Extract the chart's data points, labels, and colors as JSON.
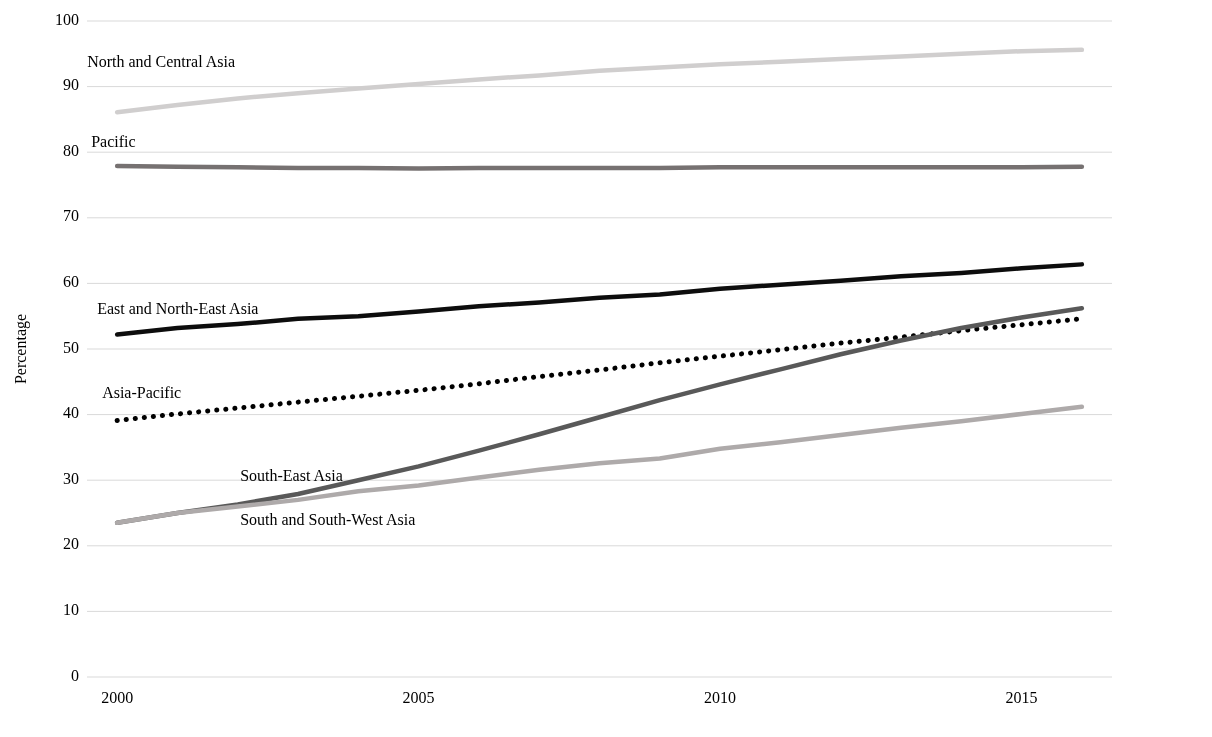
{
  "chart_data": {
    "type": "line",
    "ylabel": "Percentage",
    "x": [
      2000,
      2001,
      2002,
      2003,
      2004,
      2005,
      2006,
      2007,
      2008,
      2009,
      2010,
      2011,
      2012,
      2013,
      2014,
      2015,
      2016
    ],
    "xlim": [
      1999.5,
      2016.5
    ],
    "xticks": [
      2000,
      2005,
      2010,
      2015
    ],
    "ylim": [
      0,
      100
    ],
    "yticks": [
      0,
      10,
      20,
      30,
      40,
      50,
      60,
      70,
      80,
      90,
      100
    ],
    "grid": "y",
    "legend": false,
    "series": [
      {
        "name": "North and Central Asia",
        "color": "#d0cece",
        "values": [
          86.1,
          87.2,
          88.2,
          89.0,
          89.7,
          90.4,
          91.1,
          91.7,
          92.4,
          92.9,
          93.4,
          93.8,
          94.2,
          94.6,
          95.0,
          95.4,
          95.6
        ]
      },
      {
        "name": "Pacific",
        "color": "#767171",
        "values": [
          77.9,
          77.8,
          77.7,
          77.6,
          77.6,
          77.5,
          77.6,
          77.6,
          77.6,
          77.6,
          77.7,
          77.7,
          77.7,
          77.7,
          77.7,
          77.7,
          77.8
        ]
      },
      {
        "name": "East and North-East Asia",
        "color": "#0d0d0d",
        "values": [
          52.2,
          53.2,
          53.8,
          54.6,
          55.0,
          55.7,
          56.5,
          57.1,
          57.8,
          58.3,
          59.2,
          59.8,
          60.4,
          61.1,
          61.6,
          62.3,
          62.9
        ]
      },
      {
        "name": "Asia-Pacific",
        "color": "#000000",
        "line_style": "dotted",
        "values": [
          39.1,
          40.1,
          41.0,
          41.9,
          42.8,
          43.7,
          44.7,
          45.8,
          46.8,
          47.9,
          48.9,
          49.9,
          50.9,
          51.8,
          52.8,
          53.7,
          54.6
        ]
      },
      {
        "name": "South-East Asia",
        "color": "#595959",
        "values": [
          23.5,
          25.0,
          26.3,
          27.9,
          30.0,
          32.1,
          34.5,
          37.0,
          39.6,
          42.2,
          44.6,
          46.9,
          49.2,
          51.3,
          53.2,
          54.8,
          56.2
        ]
      },
      {
        "name": "South and South-West Asia",
        "color": "#aeaaaa",
        "values": [
          23.5,
          25.0,
          26.0,
          27.0,
          28.3,
          29.2,
          30.4,
          31.6,
          32.6,
          33.3,
          34.8,
          35.8,
          36.9,
          38.0,
          39.0,
          40.1,
          41.2
        ]
      }
    ]
  }
}
